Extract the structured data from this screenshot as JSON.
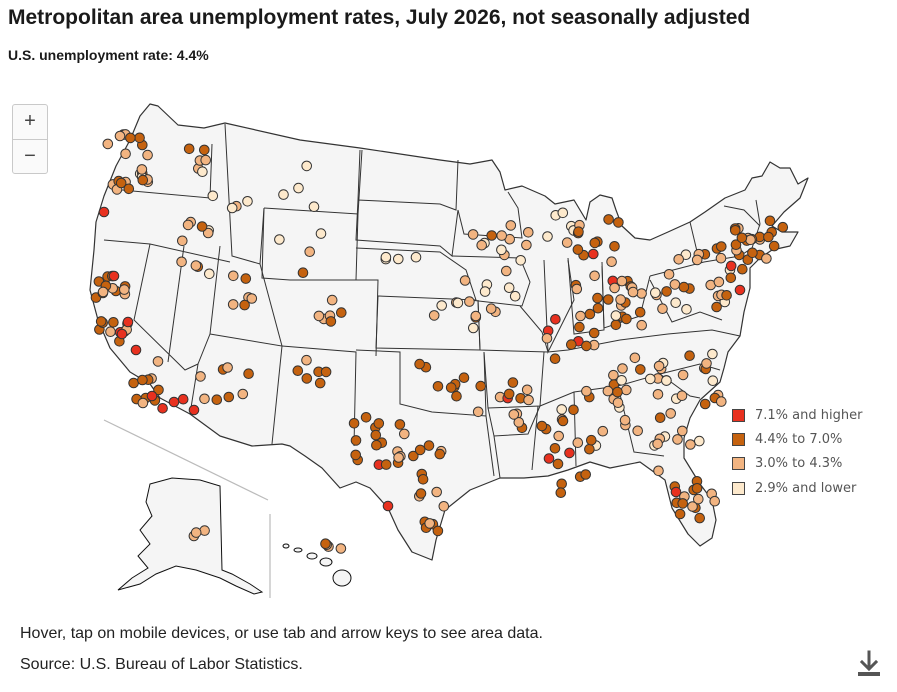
{
  "title": "Metropolitan area unemployment rates, July 2026, not seasonally adjusted",
  "subtitle": "U.S. unemployment rate: 4.4%",
  "zoom": {
    "in_label": "+",
    "out_label": "−"
  },
  "legend": [
    {
      "label": "7.1% and higher",
      "color": "#e8311f"
    },
    {
      "label": "4.4% to 7.0%",
      "color": "#c5620f"
    },
    {
      "label": "3.0% to 4.3%",
      "color": "#f2b481"
    },
    {
      "label": "2.9% and lower",
      "color": "#fde9cc"
    }
  ],
  "note": "Hover, tap on mobile devices, or use tab and arrow keys to see area data.",
  "source": "Source: U.S. Bureau of Labor Statistics.",
  "icons": {
    "download": "download-icon"
  }
}
